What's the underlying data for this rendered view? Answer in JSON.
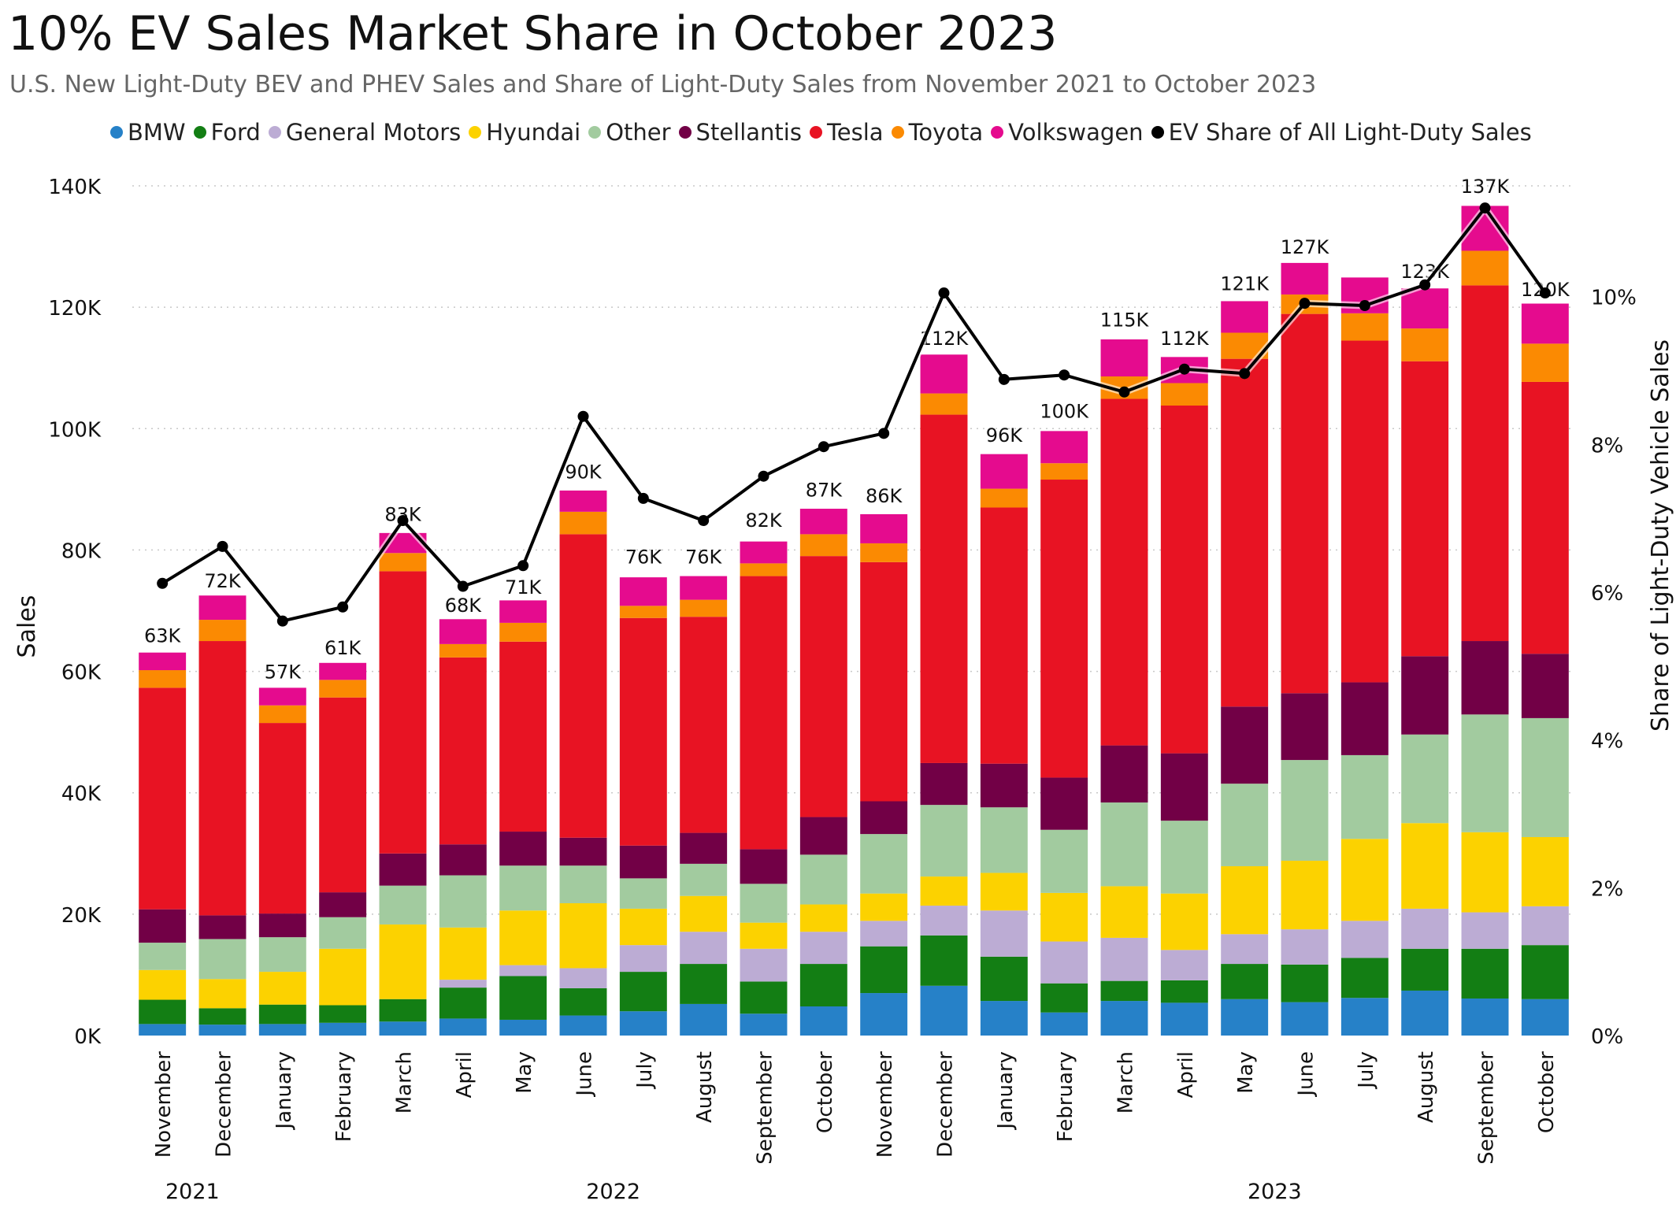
{
  "title": "10% EV Sales Market Share in October 2023",
  "subtitle": "U.S. New Light-Duty BEV and PHEV Sales and Share of Light-Duty Sales from November 2021 to October 2023",
  "colors": {
    "BMW": "#2681c8",
    "Ford": "#137e14",
    "General Motors": "#bcacd4",
    "Hyundai": "#fcd200",
    "Other": "#a2cb9f",
    "Stellantis": "#720046",
    "Tesla": "#e81323",
    "Toyota": "#fb8a02",
    "Volkswagen": "#e50b8e",
    "EV Share of All Light-Duty Sales": "#000000"
  },
  "chart_data": {
    "type": "bar",
    "stacked": true,
    "title": "10% EV Sales Market Share in October 2023",
    "subtitle": "U.S. New Light-Duty BEV and PHEV Sales and Share of Light-Duty Sales from November 2021 to October 2023",
    "ylabel": "Sales",
    "y2label": "Share of Light-Duty Vehicle Sales",
    "ylim": [
      0,
      140000
    ],
    "y2lim": [
      0,
      0.115
    ],
    "yticks": [
      {
        "value": 0,
        "label": "0K"
      },
      {
        "value": 20000,
        "label": "20K"
      },
      {
        "value": 40000,
        "label": "40K"
      },
      {
        "value": 60000,
        "label": "60K"
      },
      {
        "value": 80000,
        "label": "80K"
      },
      {
        "value": 100000,
        "label": "100K"
      },
      {
        "value": 120000,
        "label": "120K"
      },
      {
        "value": 140000,
        "label": "140K"
      }
    ],
    "y2ticks": [
      {
        "value": 0,
        "label": "0%"
      },
      {
        "value": 0.02,
        "label": "2%"
      },
      {
        "value": 0.04,
        "label": "4%"
      },
      {
        "value": 0.06,
        "label": "6%"
      },
      {
        "value": 0.08,
        "label": "8%"
      },
      {
        "value": 0.1,
        "label": "10%"
      }
    ],
    "grid": true,
    "legend_position": "top",
    "categories": [
      "November",
      "December",
      "January",
      "February",
      "March",
      "April",
      "May",
      "June",
      "July",
      "August",
      "September",
      "October",
      "November",
      "December",
      "January",
      "February",
      "March",
      "April",
      "May",
      "June",
      "July",
      "August",
      "September",
      "October"
    ],
    "years": [
      {
        "label": "2021",
        "first": 0,
        "last": 1
      },
      {
        "label": "2022",
        "first": 2,
        "last": 13
      },
      {
        "label": "2023",
        "first": 14,
        "last": 23
      }
    ],
    "series": [
      {
        "name": "BMW",
        "values": [
          1900,
          1800,
          1900,
          2100,
          2300,
          2800,
          2600,
          3300,
          4000,
          5200,
          3600,
          4800,
          7000,
          8200,
          5700,
          3800,
          5700,
          5400,
          6000,
          5500,
          6200,
          7400,
          6100,
          6000
        ]
      },
      {
        "name": "Ford",
        "values": [
          4000,
          2700,
          3200,
          2900,
          3700,
          5100,
          7200,
          4500,
          6500,
          6600,
          5300,
          7000,
          7700,
          8300,
          7300,
          4800,
          3300,
          3700,
          5800,
          6200,
          6600,
          6900,
          8200,
          8900
        ]
      },
      {
        "name": "General Motors",
        "values": [
          0,
          0,
          0,
          0,
          0,
          1300,
          1800,
          3300,
          4400,
          5300,
          5400,
          5300,
          4200,
          4900,
          7600,
          6900,
          7100,
          5000,
          4900,
          5800,
          6100,
          6600,
          6000,
          6400
        ]
      },
      {
        "name": "Hyundai",
        "values": [
          4900,
          4800,
          5400,
          9300,
          12300,
          8600,
          9000,
          10700,
          6000,
          5900,
          4300,
          4500,
          4500,
          4800,
          6200,
          8000,
          8500,
          9300,
          11200,
          11300,
          13500,
          14100,
          13200,
          11400
        ]
      },
      {
        "name": "Other",
        "values": [
          4500,
          6600,
          5700,
          5200,
          6400,
          8600,
          7400,
          6200,
          5000,
          5300,
          6400,
          8200,
          9800,
          11800,
          10800,
          10400,
          13800,
          12000,
          13600,
          16600,
          13800,
          14600,
          19400,
          19600
        ]
      },
      {
        "name": "Stellantis",
        "values": [
          5500,
          3900,
          3900,
          4100,
          5300,
          5100,
          5600,
          4600,
          5400,
          5100,
          5700,
          6200,
          5400,
          6900,
          7200,
          8600,
          9400,
          11100,
          12700,
          11000,
          12000,
          12900,
          12100,
          10600
        ]
      },
      {
        "name": "Tesla",
        "values": [
          36500,
          45200,
          31400,
          32100,
          46500,
          30800,
          31300,
          50000,
          37500,
          35600,
          45000,
          43000,
          39400,
          57400,
          42200,
          49100,
          57100,
          57300,
          57300,
          62500,
          56300,
          48600,
          58600,
          44800
        ]
      },
      {
        "name": "Toyota",
        "values": [
          2900,
          3500,
          2900,
          2900,
          3000,
          2200,
          3100,
          3700,
          2000,
          2800,
          2100,
          3600,
          3100,
          3500,
          3100,
          2700,
          3700,
          3700,
          4300,
          3200,
          4500,
          5400,
          5700,
          6300
        ]
      },
      {
        "name": "Volkswagen",
        "values": [
          2900,
          4000,
          2900,
          2800,
          3300,
          4100,
          3700,
          3500,
          4700,
          3900,
          3600,
          4200,
          4800,
          6400,
          5700,
          5300,
          6100,
          4300,
          5200,
          5200,
          5900,
          6600,
          7400,
          6600
        ]
      }
    ],
    "totals": [
      {
        "value": 63000,
        "label": "63K"
      },
      {
        "value": 72000,
        "label": "72K"
      },
      {
        "value": 57000,
        "label": "57K"
      },
      {
        "value": 61000,
        "label": "61K"
      },
      {
        "value": 83000,
        "label": "83K"
      },
      {
        "value": 68000,
        "label": "68K"
      },
      {
        "value": 71000,
        "label": "71K"
      },
      {
        "value": 90000,
        "label": "90K"
      },
      {
        "value": 76000,
        "label": "76K"
      },
      {
        "value": 76000,
        "label": "76K"
      },
      {
        "value": 82000,
        "label": "82K"
      },
      {
        "value": 87000,
        "label": "87K"
      },
      {
        "value": 86000,
        "label": "86K"
      },
      {
        "value": 112000,
        "label": "112K"
      },
      {
        "value": 96000,
        "label": "96K"
      },
      {
        "value": 100000,
        "label": "100K"
      },
      {
        "value": 115000,
        "label": "115K"
      },
      {
        "value": 112000,
        "label": "112K"
      },
      {
        "value": 121000,
        "label": "121K"
      },
      {
        "value": 127000,
        "label": "127K"
      },
      {
        "value": 125000,
        "label": ""
      },
      {
        "value": 123000,
        "label": "123K"
      },
      {
        "value": 137000,
        "label": "137K"
      },
      {
        "value": 120000,
        "label": "120K"
      }
    ],
    "line_series": {
      "name": "EV Share of All Light-Duty Sales",
      "axis": "right",
      "values": [
        0.0612,
        0.0662,
        0.0561,
        0.058,
        0.0697,
        0.0608,
        0.0636,
        0.0838,
        0.0727,
        0.0697,
        0.0757,
        0.0797,
        0.0815,
        0.1005,
        0.0888,
        0.0894,
        0.0871,
        0.0902,
        0.0896,
        0.0991,
        0.0988,
        0.1016,
        0.112,
        0.1005
      ]
    }
  }
}
